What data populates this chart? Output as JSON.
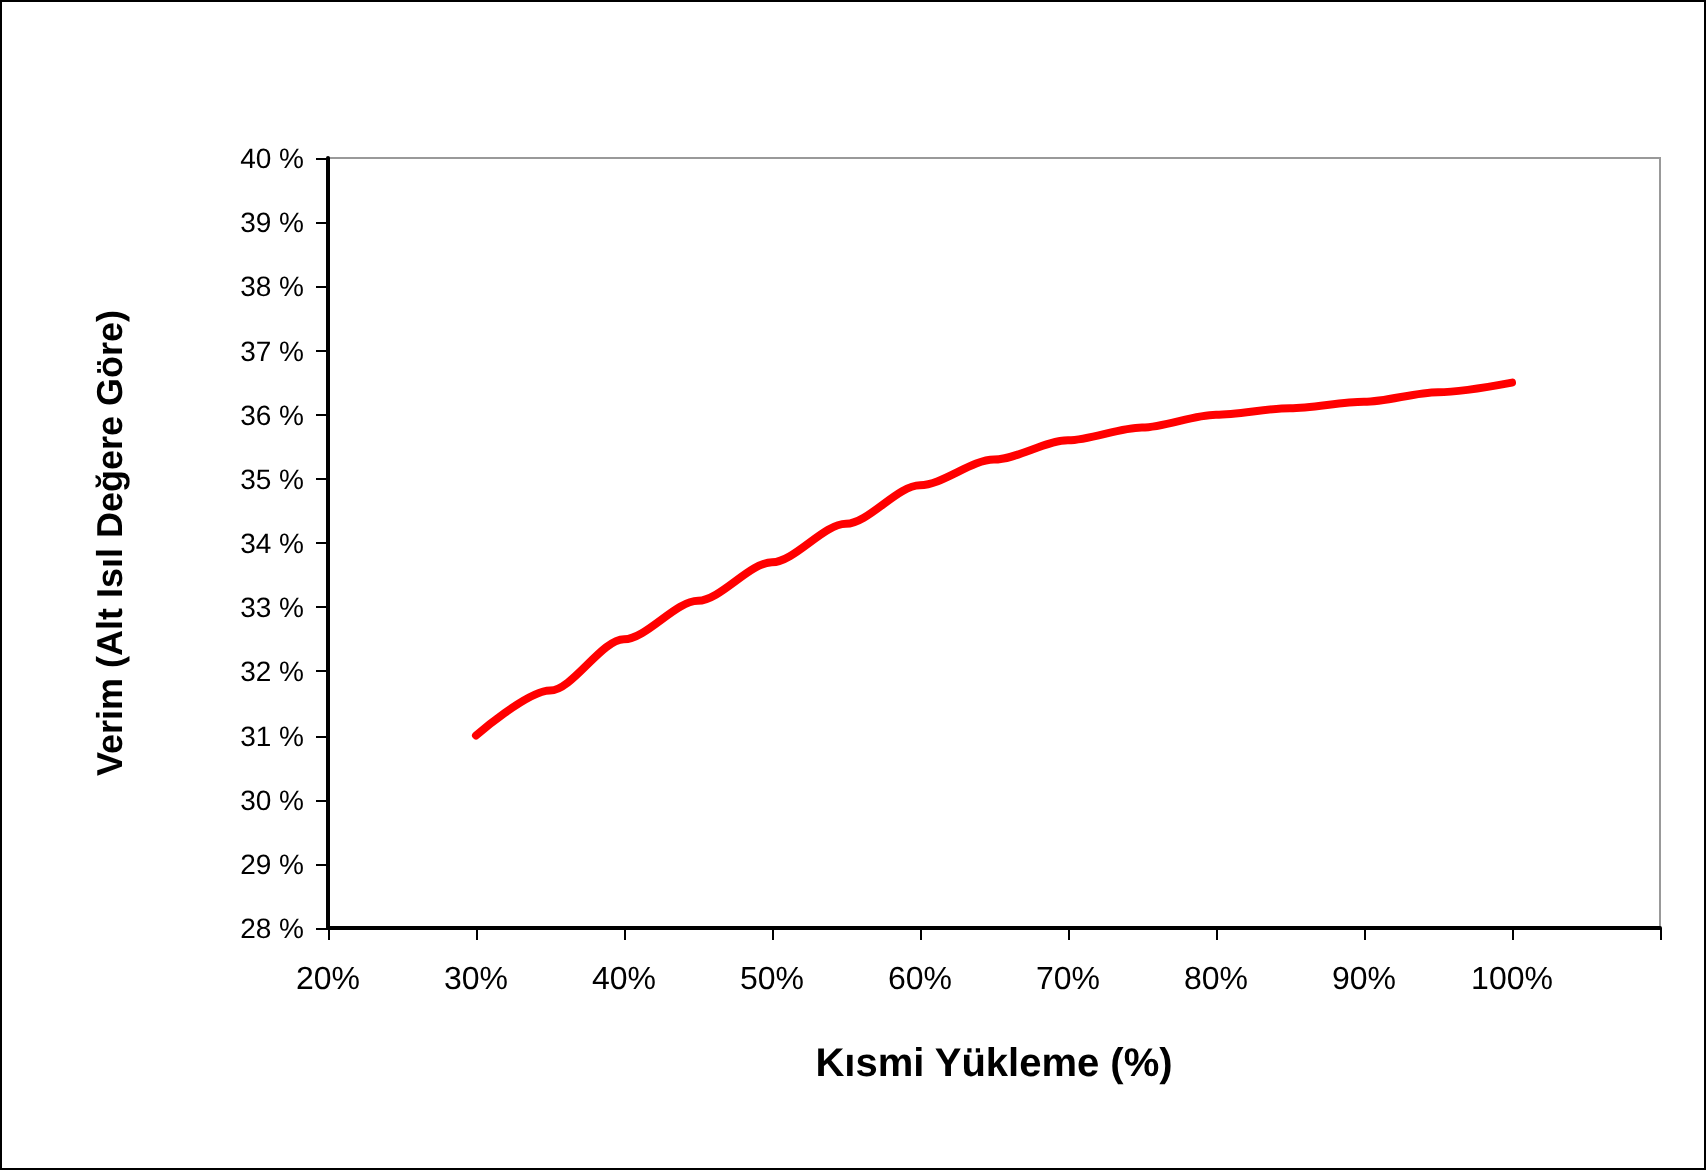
{
  "chart_data": {
    "type": "line",
    "xlabel": "Kısmi Yükleme (%)",
    "ylabel": "Verim (Alt Isıl Değere Göre)",
    "series": [
      {
        "color": "#ff0000",
        "x": [
          30,
          35,
          40,
          45,
          50,
          55,
          60,
          65,
          70,
          75,
          80,
          85,
          90,
          95,
          100
        ],
        "values": [
          31.0,
          31.7,
          32.5,
          33.1,
          33.7,
          34.3,
          34.9,
          35.3,
          35.6,
          35.8,
          36.0,
          36.1,
          36.2,
          36.35,
          36.5
        ]
      }
    ],
    "xlim": [
      20,
      110
    ],
    "xticks": [
      {
        "value": 20,
        "label": "20%"
      },
      {
        "value": 30,
        "label": "30%"
      },
      {
        "value": 40,
        "label": "40%"
      },
      {
        "value": 50,
        "label": "50%"
      },
      {
        "value": 60,
        "label": "60%"
      },
      {
        "value": 70,
        "label": "70%"
      },
      {
        "value": 80,
        "label": "80%"
      },
      {
        "value": 90,
        "label": "90%"
      },
      {
        "value": 100,
        "label": "100%"
      },
      {
        "value": 110,
        "label": null
      }
    ],
    "ylim": [
      28,
      40
    ],
    "yticks": [
      {
        "value": 28,
        "label": "28 %"
      },
      {
        "value": 29,
        "label": "29 %"
      },
      {
        "value": 30,
        "label": "30 %"
      },
      {
        "value": 31,
        "label": "31 %"
      },
      {
        "value": 32,
        "label": "32 %"
      },
      {
        "value": 33,
        "label": "33 %"
      },
      {
        "value": 34,
        "label": "34 %"
      },
      {
        "value": 35,
        "label": "35 %"
      },
      {
        "value": 36,
        "label": "36 %"
      },
      {
        "value": 37,
        "label": "37 %"
      },
      {
        "value": 38,
        "label": "38 %"
      },
      {
        "value": 39,
        "label": "39 %"
      },
      {
        "value": 40,
        "label": "40 %"
      }
    ],
    "grid": false,
    "marker": "none",
    "line_style": "solid"
  }
}
